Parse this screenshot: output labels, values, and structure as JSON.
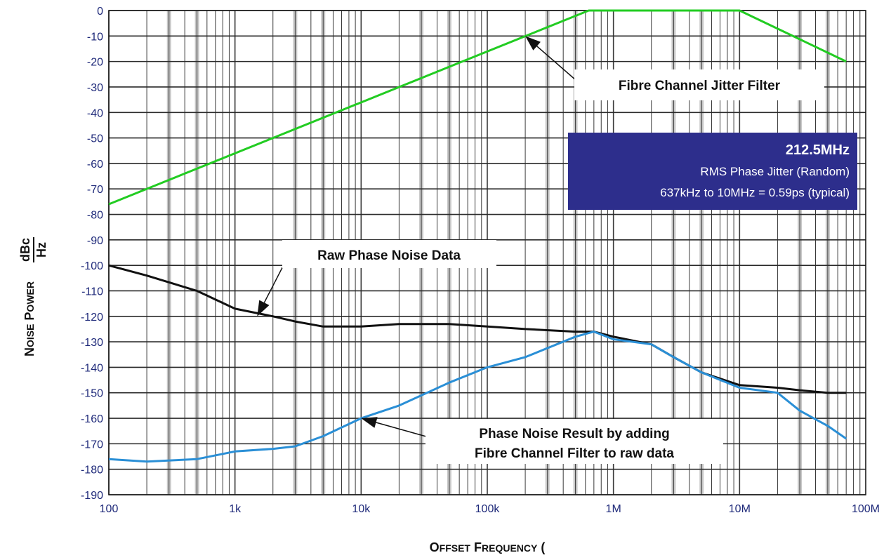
{
  "chart_data": {
    "type": "line",
    "title": "",
    "xscale": "log",
    "xlim": [
      100,
      100000000
    ],
    "ylim": [
      -190,
      0
    ],
    "grid": true,
    "xlabel": "Offset Frequency (Hz)",
    "ylabel_prefix": "Noise Power",
    "ylabel_unit_num": "dBc",
    "ylabel_unit_den": "Hz",
    "x_ticks": [
      {
        "value": 100,
        "label": "100"
      },
      {
        "value": 1000,
        "label": "1k"
      },
      {
        "value": 10000,
        "label": "10k"
      },
      {
        "value": 100000,
        "label": "100k"
      },
      {
        "value": 1000000,
        "label": "1M"
      },
      {
        "value": 10000000,
        "label": "10M"
      },
      {
        "value": 100000000,
        "label": "100M"
      }
    ],
    "y_ticks": [
      0,
      -10,
      -20,
      -30,
      -40,
      -50,
      -60,
      -70,
      -80,
      -90,
      -100,
      -110,
      -120,
      -130,
      -140,
      -150,
      -160,
      -170,
      -180,
      -190
    ],
    "series": [
      {
        "name": "Fibre Channel Jitter Filter",
        "color": "#22cc22",
        "points": [
          [
            100,
            -76
          ],
          [
            637000,
            0
          ],
          [
            10000000,
            0
          ],
          [
            70000000,
            -20
          ]
        ]
      },
      {
        "name": "Raw Phase Noise Data",
        "color": "#111111",
        "points": [
          [
            100,
            -100
          ],
          [
            200,
            -104
          ],
          [
            500,
            -110
          ],
          [
            1000,
            -117
          ],
          [
            2000,
            -120
          ],
          [
            3000,
            -122
          ],
          [
            5000,
            -124
          ],
          [
            10000,
            -124
          ],
          [
            20000,
            -123
          ],
          [
            50000,
            -123
          ],
          [
            100000,
            -124
          ],
          [
            200000,
            -125
          ],
          [
            500000,
            -126
          ],
          [
            700000,
            -126
          ],
          [
            1000000,
            -128
          ],
          [
            2000000,
            -131
          ],
          [
            3000000,
            -136
          ],
          [
            5000000,
            -142
          ],
          [
            10000000,
            -147
          ],
          [
            20000000,
            -148
          ],
          [
            30000000,
            -149
          ],
          [
            50000000,
            -150
          ],
          [
            70000000,
            -150
          ]
        ]
      },
      {
        "name": "Phase Noise Result by adding Fibre Channel Filter to raw data",
        "color": "#2a8fd6",
        "points": [
          [
            100,
            -176
          ],
          [
            200,
            -177
          ],
          [
            500,
            -176
          ],
          [
            1000,
            -173
          ],
          [
            2000,
            -172
          ],
          [
            3000,
            -171
          ],
          [
            5000,
            -167
          ],
          [
            10000,
            -160
          ],
          [
            20000,
            -155
          ],
          [
            50000,
            -146
          ],
          [
            100000,
            -140
          ],
          [
            200000,
            -136
          ],
          [
            500000,
            -128
          ],
          [
            700000,
            -126
          ],
          [
            1000000,
            -129
          ],
          [
            2000000,
            -131
          ],
          [
            3000000,
            -136
          ],
          [
            5000000,
            -142
          ],
          [
            10000000,
            -148
          ],
          [
            20000000,
            -150
          ],
          [
            30000000,
            -157
          ],
          [
            50000000,
            -163
          ],
          [
            70000000,
            -168
          ]
        ]
      }
    ],
    "annotations": [
      {
        "lines": [
          "Fibre Channel Jitter Filter"
        ],
        "target": [
          200000,
          -10
        ]
      },
      {
        "lines": [
          "Raw Phase Noise Data"
        ],
        "target": [
          1500,
          -120
        ]
      },
      {
        "lines": [
          "Phase Noise Result by adding",
          "Fibre Channel Filter to raw data"
        ],
        "target": [
          10000,
          -160
        ]
      }
    ],
    "info_box": {
      "title": "212.5MHz",
      "line1": "RMS Phase Jitter  (Random)",
      "line2": "637kHz to 10MHz = 0.59ps (typical)",
      "background": "#2d2e8c"
    }
  }
}
